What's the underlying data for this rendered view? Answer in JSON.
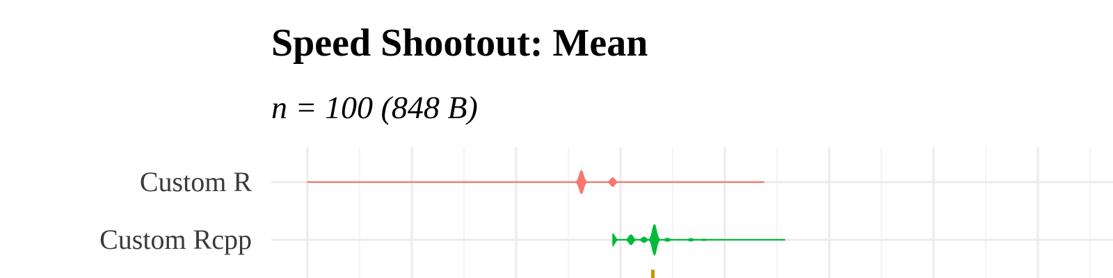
{
  "chart_data": {
    "type": "violin",
    "title": "Speed Shootout: Mean",
    "subtitle": "n = 100 (848 B)",
    "xlabel": "",
    "ylabel": "",
    "categories": [
      "Custom R",
      "Custom Rcpp"
    ],
    "colors": {
      "Custom R": "#F8766D",
      "Custom Rcpp": "#00BA38",
      "partially_visible_below": "#C99800"
    },
    "grid": true,
    "legend": "none",
    "series": [
      {
        "category": "Custom R",
        "range": [
          0.0,
          8.75
        ],
        "modes": [
          {
            "x": 5.25,
            "halfHeight": 0.42
          },
          {
            "x": 5.85,
            "halfHeight": 0.16
          }
        ]
      },
      {
        "category": "Custom Rcpp",
        "range": [
          5.85,
          9.15
        ],
        "modes": [
          {
            "x": 5.85,
            "halfHeight": 0.22
          },
          {
            "x": 6.2,
            "halfHeight": 0.18
          },
          {
            "x": 6.45,
            "halfHeight": 0.1
          },
          {
            "x": 6.65,
            "halfHeight": 0.55
          },
          {
            "x": 6.9,
            "halfHeight": 0.06
          },
          {
            "x": 7.35,
            "halfHeight": 0.05
          },
          {
            "x": 7.6,
            "halfHeight": 0.03
          }
        ]
      }
    ]
  }
}
